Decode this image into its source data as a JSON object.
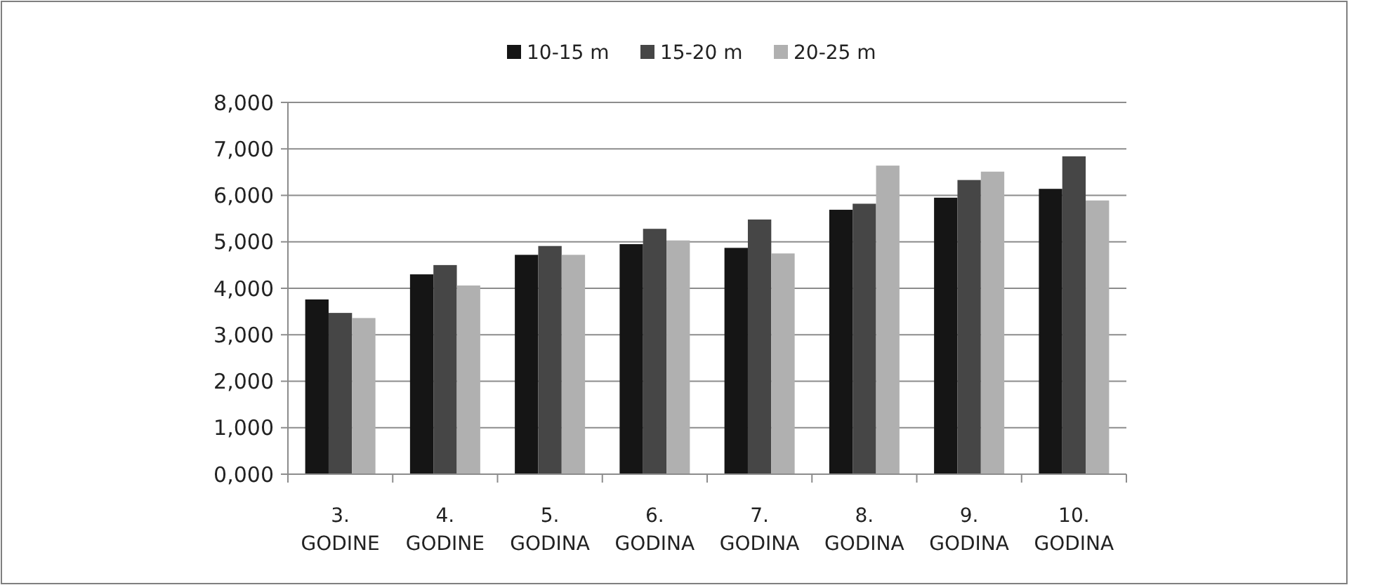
{
  "chart_data": {
    "type": "bar",
    "categories": [
      "3. GODINE",
      "4. GODINE",
      "5. GODINA",
      "6. GODINA",
      "7. GODINA",
      "8. GODINA",
      "9. GODINA",
      "10. GODINA"
    ],
    "series": [
      {
        "name": "10-15 m",
        "color": "#151515",
        "values": [
          3760,
          4300,
          4720,
          4950,
          4870,
          5690,
          5950,
          6140
        ]
      },
      {
        "name": "15-20 m",
        "color": "#464646",
        "values": [
          3470,
          4500,
          4910,
          5280,
          5480,
          5820,
          6330,
          6840
        ]
      },
      {
        "name": "20-25 m",
        "color": "#b0b0b0",
        "values": [
          3360,
          4060,
          4720,
          5030,
          4750,
          6640,
          6510,
          5890
        ]
      }
    ],
    "ylim": [
      0,
      8000
    ],
    "yticks": [
      {
        "value": 0,
        "label": "0,000"
      },
      {
        "value": 1000,
        "label": "1,000"
      },
      {
        "value": 2000,
        "label": "2,000"
      },
      {
        "value": 3000,
        "label": "3,000"
      },
      {
        "value": 4000,
        "label": "4,000"
      },
      {
        "value": 5000,
        "label": "5,000"
      },
      {
        "value": 6000,
        "label": "6,000"
      },
      {
        "value": 7000,
        "label": "7,000"
      },
      {
        "value": 8000,
        "label": "8,000"
      }
    ],
    "grid": "y",
    "legend": "top"
  }
}
